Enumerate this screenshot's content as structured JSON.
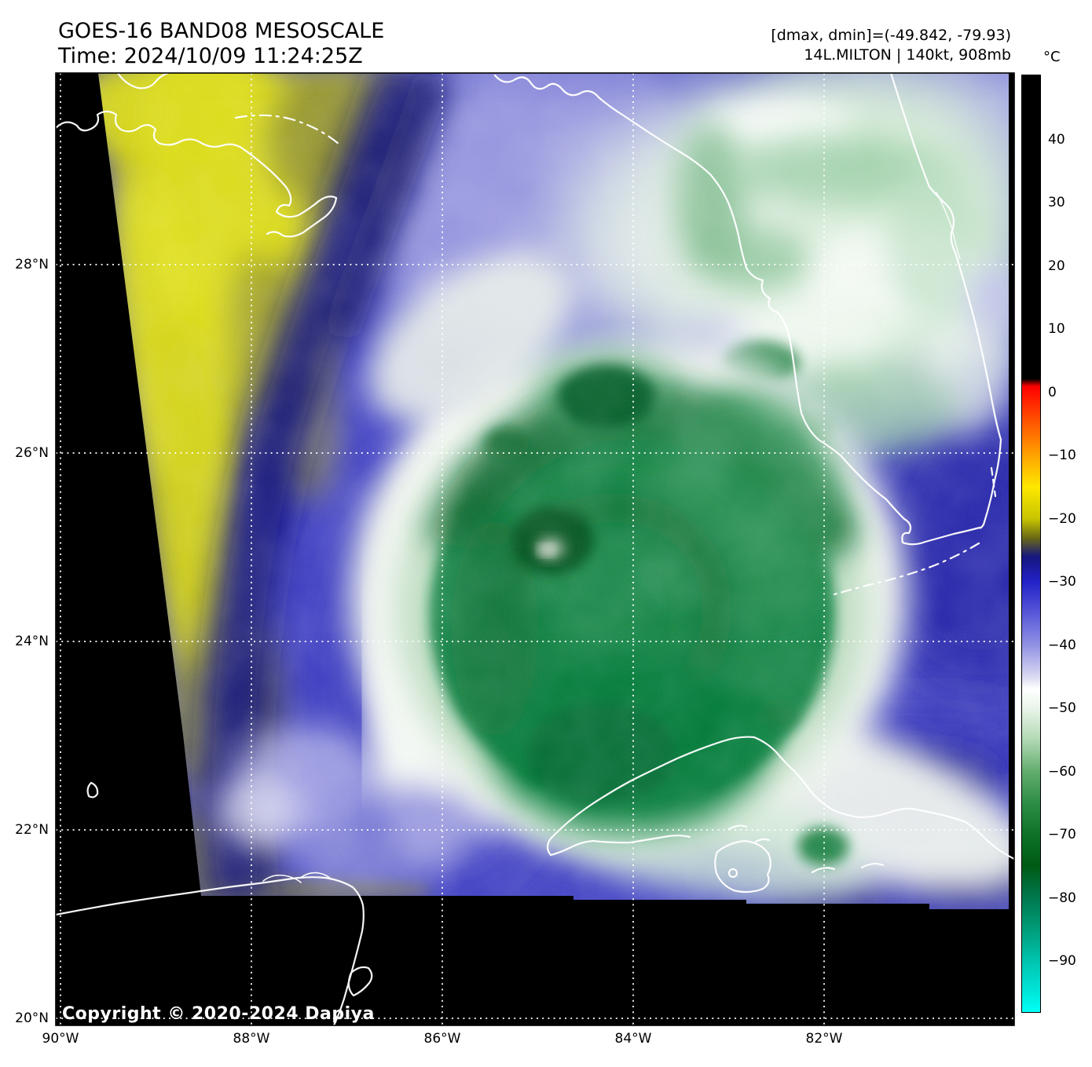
{
  "header": {
    "title": "GOES-16 BAND08 MESOSCALE",
    "time_line": "Time: 2024/10/09 11:24:25Z",
    "dmax_dmin": "[dmax, dmin]=(-49.842, -79.93)",
    "storm_info": "14L.MILTON | 140kt, 908mb"
  },
  "map": {
    "copyright": "Copyright © 2020-2024 Dapiya",
    "lat_ticks": [
      {
        "label": "28°N",
        "lat": 28
      },
      {
        "label": "26°N",
        "lat": 26
      },
      {
        "label": "24°N",
        "lat": 24
      },
      {
        "label": "22°N",
        "lat": 22
      },
      {
        "label": "20°N",
        "lat": 20
      }
    ],
    "lon_ticks": [
      {
        "label": "90°W",
        "lon": 90
      },
      {
        "label": "88°W",
        "lon": 88
      },
      {
        "label": "86°W",
        "lon": 86
      },
      {
        "label": "84°W",
        "lon": 84
      },
      {
        "label": "82°W",
        "lon": 82
      }
    ]
  },
  "colorbar": {
    "unit": "°C",
    "ticks": [
      {
        "label": "40",
        "value": 40
      },
      {
        "label": "30",
        "value": 30
      },
      {
        "label": "20",
        "value": 20
      },
      {
        "label": "10",
        "value": 10
      },
      {
        "label": "0",
        "value": 0
      },
      {
        "label": "−10",
        "value": -10
      },
      {
        "label": "−20",
        "value": -20
      },
      {
        "label": "−30",
        "value": -30
      },
      {
        "label": "−40",
        "value": -40
      },
      {
        "label": "−50",
        "value": -50
      },
      {
        "label": "−60",
        "value": -60
      },
      {
        "label": "−70",
        "value": -70
      },
      {
        "label": "−80",
        "value": -80
      },
      {
        "label": "−90",
        "value": -90
      }
    ],
    "stops": [
      {
        "value": 50.3,
        "color": "#000000"
      },
      {
        "value": 2.2,
        "color": "#000000"
      },
      {
        "value": 1.0,
        "color": "#ff0000"
      },
      {
        "value": -5,
        "color": "#ff5a00"
      },
      {
        "value": -10,
        "color": "#ffa400"
      },
      {
        "value": -15,
        "color": "#fde800"
      },
      {
        "value": -20,
        "color": "#c8c400"
      },
      {
        "value": -23,
        "color": "#6a6a14"
      },
      {
        "value": -26,
        "color": "#16167e"
      },
      {
        "value": -30,
        "color": "#2222c8"
      },
      {
        "value": -35,
        "color": "#5858d8"
      },
      {
        "value": -40,
        "color": "#9191e4"
      },
      {
        "value": -45,
        "color": "#d9d9f2"
      },
      {
        "value": -47,
        "color": "#ffffff"
      },
      {
        "value": -50,
        "color": "#eaf5ea"
      },
      {
        "value": -55,
        "color": "#b2d9b4"
      },
      {
        "value": -60,
        "color": "#63ad6f"
      },
      {
        "value": -65,
        "color": "#2e8d46"
      },
      {
        "value": -70,
        "color": "#0f7228"
      },
      {
        "value": -75,
        "color": "#005a14"
      },
      {
        "value": -80,
        "color": "#00774e"
      },
      {
        "value": -85,
        "color": "#009c78"
      },
      {
        "value": -90,
        "color": "#00c3ae"
      },
      {
        "value": -95,
        "color": "#00e6da"
      },
      {
        "value": -98.2,
        "color": "#00fff6"
      }
    ]
  }
}
